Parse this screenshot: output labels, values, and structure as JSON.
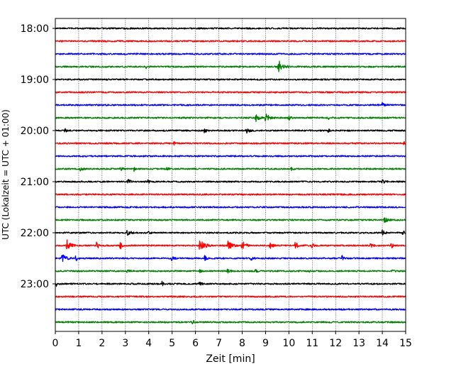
{
  "chart_data": {
    "type": "line",
    "title": "",
    "xlabel": "Zeit  [min]",
    "ylabel": "UTC (Lokalzeit = UTC + 01:00)",
    "xlim": [
      0,
      15
    ],
    "x_ticks": [
      "0",
      "1",
      "2",
      "3",
      "4",
      "5",
      "6",
      "7",
      "8",
      "9",
      "10",
      "11",
      "12",
      "13",
      "14",
      "15"
    ],
    "y_ticks": [
      "18:00",
      "19:00",
      "20:00",
      "21:00",
      "22:00",
      "23:00"
    ],
    "grid": "vertical dotted at each minute",
    "minutes_per_trace": 15,
    "first_trace": "18:00",
    "trace_colors": [
      "#000000",
      "#ff0000",
      "#0000ff",
      "#008000"
    ],
    "traces": [
      {
        "start": "18:00",
        "color": "#000000",
        "events": []
      },
      {
        "start": "18:15",
        "color": "#ff0000",
        "events": []
      },
      {
        "start": "18:30",
        "color": "#0000ff",
        "events": []
      },
      {
        "start": "18:45",
        "color": "#008000",
        "events": [
          {
            "t": 9.55,
            "amp": 9,
            "dur": 0.5
          },
          {
            "t": 3.9,
            "amp": 2,
            "dur": 0.2
          }
        ]
      },
      {
        "start": "19:00",
        "color": "#000000",
        "events": []
      },
      {
        "start": "19:15",
        "color": "#ff0000",
        "events": []
      },
      {
        "start": "19:30",
        "color": "#0000ff",
        "events": [
          {
            "t": 14.0,
            "amp": 3,
            "dur": 0.3
          }
        ]
      },
      {
        "start": "19:45",
        "color": "#008000",
        "events": [
          {
            "t": 8.6,
            "amp": 5,
            "dur": 0.3
          },
          {
            "t": 9.0,
            "amp": 6,
            "dur": 0.4
          },
          {
            "t": 10.0,
            "amp": 3,
            "dur": 0.2
          },
          {
            "t": 11.7,
            "amp": 2,
            "dur": 0.2
          }
        ]
      },
      {
        "start": "20:00",
        "color": "#000000",
        "events": [
          {
            "t": 0.4,
            "amp": 3,
            "dur": 0.2
          },
          {
            "t": 6.4,
            "amp": 3,
            "dur": 0.2
          },
          {
            "t": 8.2,
            "amp": 3,
            "dur": 0.3
          },
          {
            "t": 11.7,
            "amp": 2,
            "dur": 0.2
          }
        ]
      },
      {
        "start": "20:15",
        "color": "#ff0000",
        "events": [
          {
            "t": 5.1,
            "amp": 2,
            "dur": 0.1
          },
          {
            "t": 14.9,
            "amp": 4,
            "dur": 0.15
          }
        ]
      },
      {
        "start": "20:30",
        "color": "#0000ff",
        "events": []
      },
      {
        "start": "20:45",
        "color": "#008000",
        "events": [
          {
            "t": 1.1,
            "amp": 3,
            "dur": 0.2
          },
          {
            "t": 2.8,
            "amp": 2,
            "dur": 0.2
          },
          {
            "t": 3.4,
            "amp": 3,
            "dur": 0.1
          },
          {
            "t": 4.8,
            "amp": 2,
            "dur": 0.2
          },
          {
            "t": 10.1,
            "amp": 2,
            "dur": 0.2
          }
        ]
      },
      {
        "start": "21:00",
        "color": "#000000",
        "events": [
          {
            "t": 3.1,
            "amp": 3,
            "dur": 0.3
          },
          {
            "t": 4.0,
            "amp": 3,
            "dur": 0.1
          },
          {
            "t": 14.0,
            "amp": 3,
            "dur": 0.3
          }
        ]
      },
      {
        "start": "21:15",
        "color": "#ff0000",
        "events": []
      },
      {
        "start": "21:30",
        "color": "#0000ff",
        "events": []
      },
      {
        "start": "21:45",
        "color": "#008000",
        "events": [
          {
            "t": 14.1,
            "amp": 3,
            "dur": 0.3
          }
        ]
      },
      {
        "start": "22:00",
        "color": "#000000",
        "events": [
          {
            "t": 3.1,
            "amp": 3,
            "dur": 0.4
          },
          {
            "t": 4.0,
            "amp": 2,
            "dur": 0.2
          },
          {
            "t": 14.0,
            "amp": 3,
            "dur": 0.3
          },
          {
            "t": 14.9,
            "amp": 4,
            "dur": 0.1
          }
        ]
      },
      {
        "start": "22:15",
        "color": "#ff0000",
        "events": [
          {
            "t": 0.5,
            "amp": 8,
            "dur": 0.4
          },
          {
            "t": 1.8,
            "amp": 4,
            "dur": 0.2
          },
          {
            "t": 2.8,
            "amp": 4,
            "dur": 0.2
          },
          {
            "t": 6.2,
            "amp": 9,
            "dur": 0.5
          },
          {
            "t": 7.4,
            "amp": 7,
            "dur": 0.4
          },
          {
            "t": 8.0,
            "amp": 6,
            "dur": 0.4
          },
          {
            "t": 9.2,
            "amp": 4,
            "dur": 0.3
          },
          {
            "t": 10.3,
            "amp": 4,
            "dur": 0.3
          },
          {
            "t": 11.0,
            "amp": 3,
            "dur": 0.3
          },
          {
            "t": 13.5,
            "amp": 3,
            "dur": 0.3
          },
          {
            "t": 14.4,
            "amp": 3,
            "dur": 0.2
          }
        ]
      },
      {
        "start": "22:30",
        "color": "#0000ff",
        "events": [
          {
            "t": 0.3,
            "amp": 6,
            "dur": 0.4
          },
          {
            "t": 0.9,
            "amp": 3,
            "dur": 0.2
          },
          {
            "t": 5.0,
            "amp": 3,
            "dur": 0.2
          },
          {
            "t": 6.4,
            "amp": 3,
            "dur": 0.2
          },
          {
            "t": 8.4,
            "amp": 3,
            "dur": 0.2
          },
          {
            "t": 12.3,
            "amp": 3,
            "dur": 0.2
          }
        ]
      },
      {
        "start": "22:45",
        "color": "#008000",
        "events": [
          {
            "t": 3.1,
            "amp": 2,
            "dur": 0.2
          },
          {
            "t": 6.2,
            "amp": 2,
            "dur": 0.2
          },
          {
            "t": 7.4,
            "amp": 2,
            "dur": 0.3
          },
          {
            "t": 8.6,
            "amp": 2,
            "dur": 0.2
          },
          {
            "t": 10.9,
            "amp": 2,
            "dur": 0.2
          },
          {
            "t": 14.4,
            "amp": 2,
            "dur": 0.2
          }
        ]
      },
      {
        "start": "23:00",
        "color": "#000000",
        "events": [
          {
            "t": 0.05,
            "amp": 3,
            "dur": 0.1
          },
          {
            "t": 4.6,
            "amp": 3,
            "dur": 0.1
          },
          {
            "t": 6.2,
            "amp": 2,
            "dur": 0.2
          }
        ]
      },
      {
        "start": "23:15",
        "color": "#ff0000",
        "events": []
      },
      {
        "start": "23:30",
        "color": "#0000ff",
        "events": []
      },
      {
        "start": "23:45",
        "color": "#008000",
        "events": [
          {
            "t": 5.9,
            "amp": 2,
            "dur": 0.2
          }
        ]
      }
    ]
  }
}
